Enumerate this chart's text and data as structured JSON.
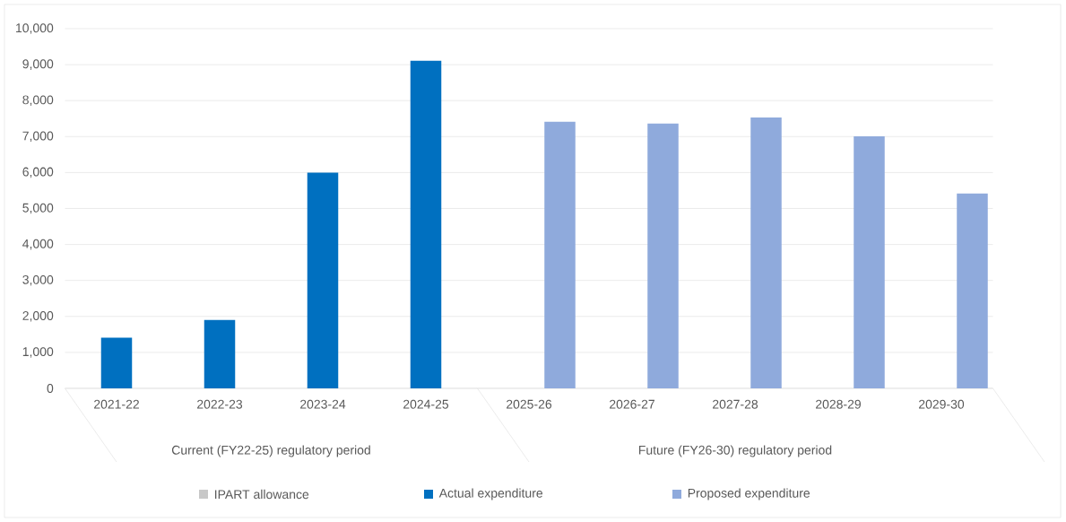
{
  "chart_data": {
    "type": "bar",
    "categories": [
      "2021-22",
      "2022-23",
      "2023-24",
      "2024-25",
      "2025-26",
      "2026-27",
      "2027-28",
      "2028-29",
      "2029-30"
    ],
    "series": [
      {
        "name": "IPART allowance",
        "color": "#c8c8c8",
        "values": [
          null,
          null,
          null,
          null,
          null,
          null,
          null,
          null,
          null
        ]
      },
      {
        "name": "Actual expenditure",
        "color": "#0070c0",
        "values": [
          1410,
          1900,
          6000,
          9110,
          null,
          null,
          null,
          null,
          null
        ]
      },
      {
        "name": "Proposed expenditure",
        "color": "#8faadc",
        "values": [
          null,
          null,
          null,
          null,
          7410,
          7360,
          7530,
          7010,
          5420
        ]
      }
    ],
    "ylim": [
      0,
      10000
    ],
    "yticks": [
      0,
      {
        "value": 1000,
        "label": "1,000"
      },
      {
        "value": 2000,
        "label": "2,000"
      },
      {
        "value": 3000,
        "label": "3,000"
      },
      {
        "value": 4000,
        "label": "4,000"
      },
      {
        "value": 5000,
        "label": "5,000"
      },
      {
        "value": 6000,
        "label": "6,000"
      },
      {
        "value": 7000,
        "label": "7,000"
      },
      {
        "value": 8000,
        "label": "8,000"
      },
      {
        "value": 9000,
        "label": "9,000"
      },
      {
        "value": 10000,
        "label": "10,000"
      }
    ],
    "grid": "y",
    "legend": "bottom",
    "annotations": [
      "Current (FY22-25) regulatory period",
      "Future (FY26-30) regulatory period"
    ]
  }
}
